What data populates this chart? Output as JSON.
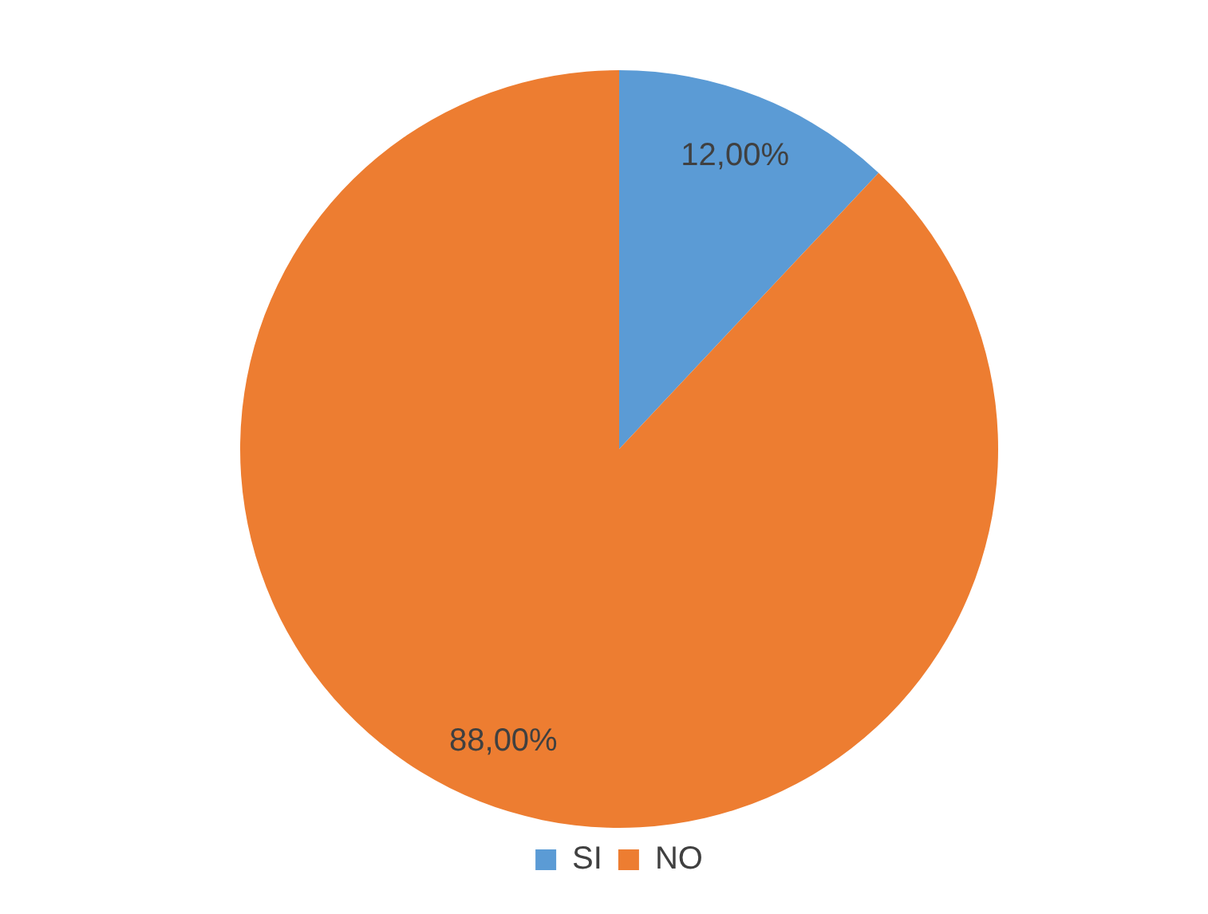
{
  "chart_data": {
    "type": "pie",
    "categories": [
      "SI",
      "NO"
    ],
    "values": [
      12,
      88
    ],
    "colors": [
      "#5b9bd5",
      "#ed7d31"
    ],
    "value_labels": [
      "12,00%",
      "88,00%"
    ],
    "legend": "bottom"
  }
}
